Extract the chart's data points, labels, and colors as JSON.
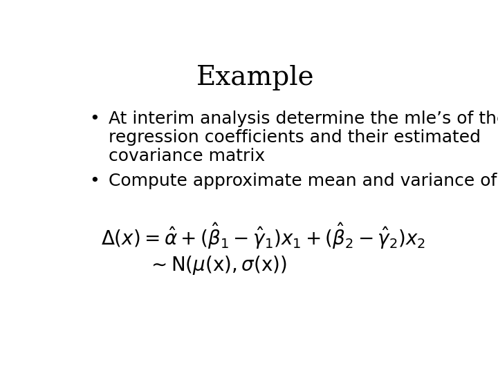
{
  "title": "Example",
  "title_fontsize": 28,
  "title_font": "DejaVu Serif",
  "background_color": "#ffffff",
  "text_color": "#000000",
  "bullet1_line1": "At interim analysis determine the mle’s of the",
  "bullet1_line2": "regression coefficients and their estimated",
  "bullet1_line3": "covariance matrix",
  "bullet2": "Compute approximate mean and variance of",
  "formula1": "$\\Delta(x) = \\hat{\\alpha} + (\\hat{\\beta}_1 - \\hat{\\gamma}_1)x_1 + (\\hat{\\beta}_2 - \\hat{\\gamma}_2)x_2$",
  "formula2": "$\\sim \\mathrm{N}(\\mu(\\mathrm{x}), \\sigma(\\mathrm{x}))$",
  "body_fontsize": 18,
  "formula_fontsize": 20
}
